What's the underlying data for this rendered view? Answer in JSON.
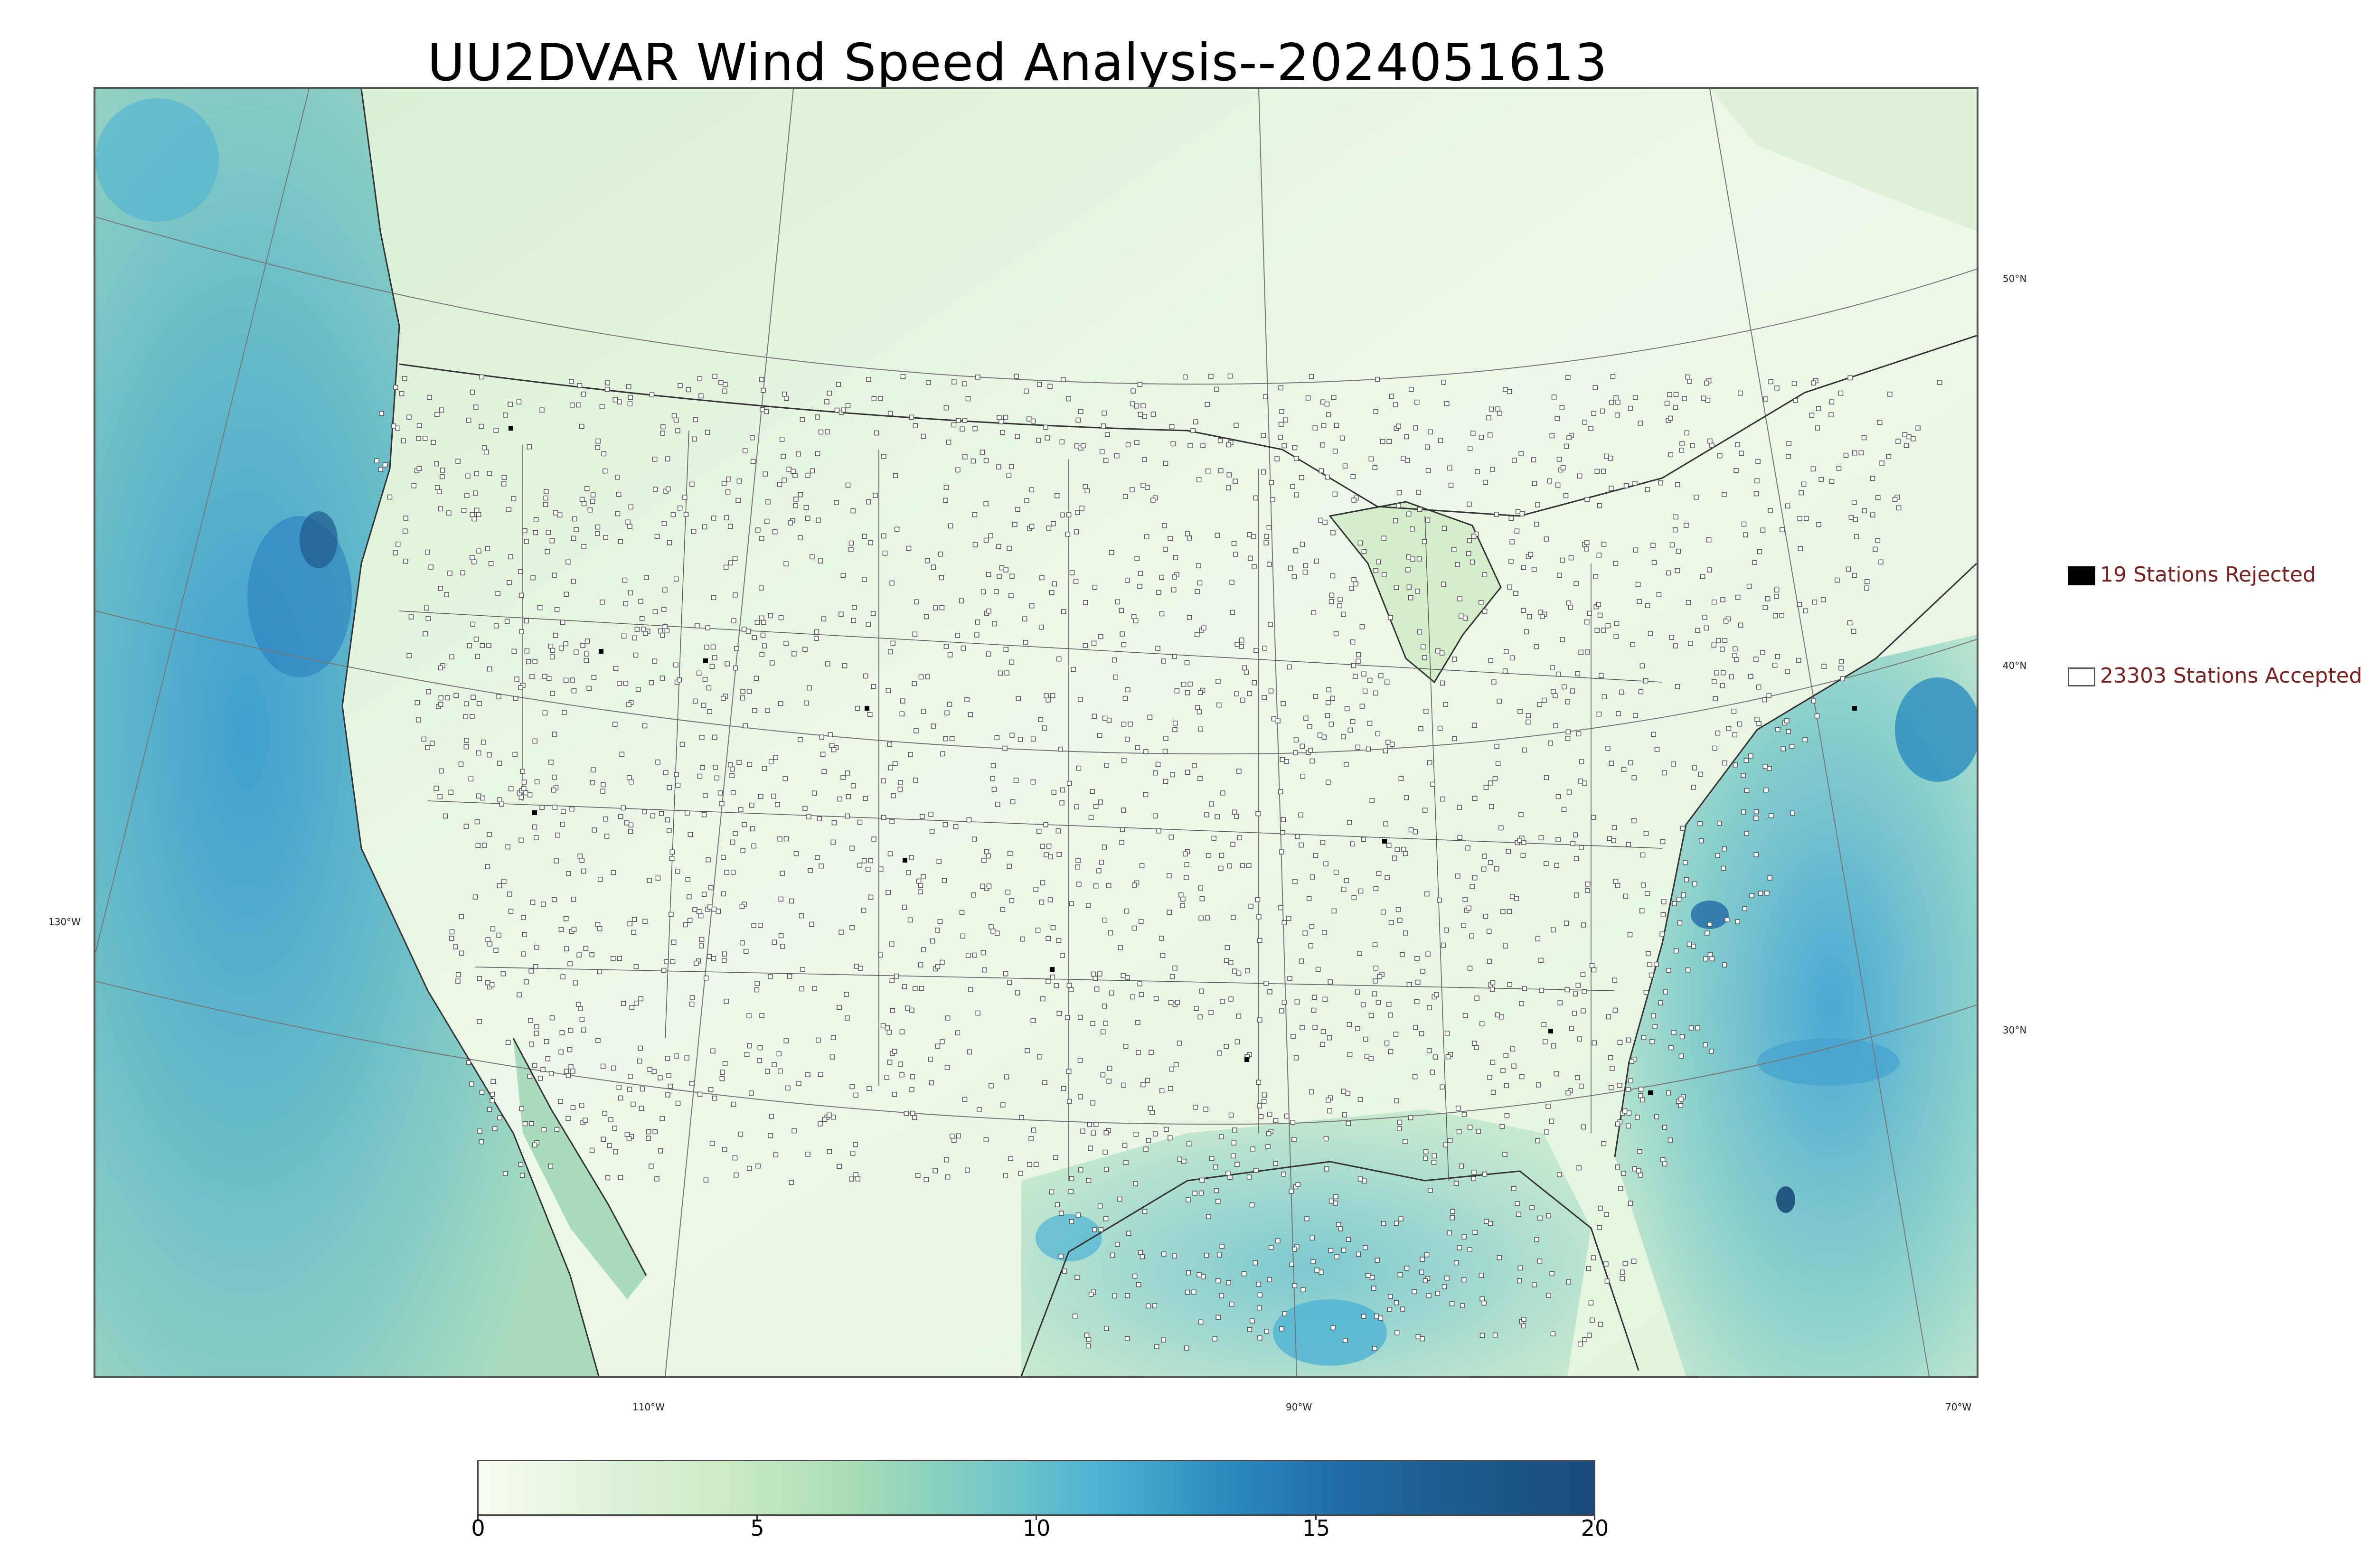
{
  "title": "UU2DVAR Wind Speed Analysis--2024051613",
  "map": {
    "latitude_labels": [
      "50°N",
      "40°N",
      "30°N"
    ],
    "longitude_labels": [
      "130°W",
      "110°W",
      "90°W",
      "70°W"
    ],
    "colors": {
      "ocean_high": "#3f9fcf",
      "ocean_mid": "#7fc8c8",
      "land_low": "#eef8e8",
      "land_mid": "#cdebc5",
      "coast_lines": "#333333",
      "grid_lines": "#777777"
    }
  },
  "legend": {
    "rejected_label": "19 Stations Rejected",
    "accepted_label": "23303 Stations Accepted",
    "rejected_color": "#000000",
    "accepted_color": "#ffffff",
    "label_color": "#7a2121"
  },
  "colorbar": {
    "ticks": [
      "0",
      "5",
      "10",
      "15",
      "20"
    ],
    "range": [
      0,
      20
    ],
    "stops": [
      "#f7fcf0",
      "#e0f3db",
      "#ccebc5",
      "#a8ddb5",
      "#7bccc4",
      "#4eb3d3",
      "#2b8cbe",
      "#1f6aa5",
      "#1c5a8c",
      "#1a4a7a"
    ]
  }
}
